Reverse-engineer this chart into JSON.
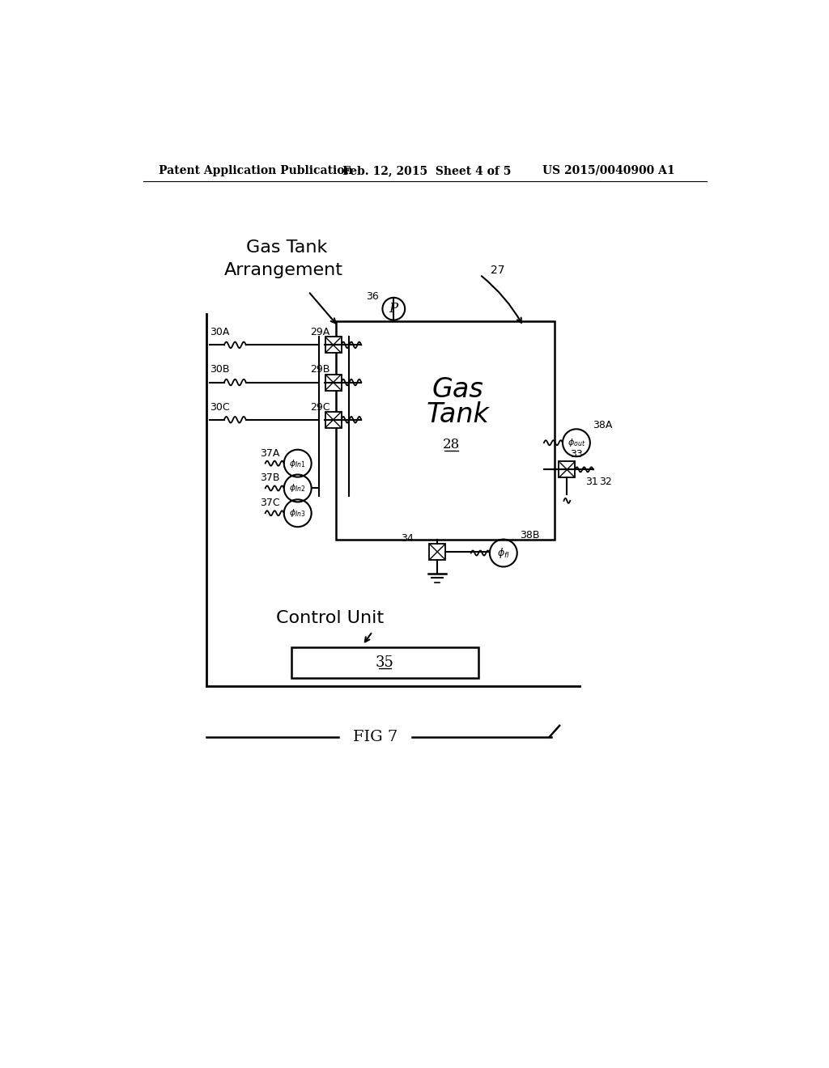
{
  "bg_color": "#ffffff",
  "header_left": "Patent Application Publication",
  "header_mid": "Feb. 12, 2015  Sheet 4 of 5",
  "header_right": "US 2015/0040900 A1",
  "fig_label": "FIG 7",
  "label_27": "27",
  "label_28": "28",
  "label_29A": "29A",
  "label_29B": "29B",
  "label_29C": "29C",
  "label_30A": "30A",
  "label_30B": "30B",
  "label_30C": "30C",
  "label_31": "31",
  "label_32": "32",
  "label_33": "33",
  "label_34": "34",
  "label_35": "35",
  "label_36": "36",
  "label_37A": "37A",
  "label_37B": "37B",
  "label_37C": "37C",
  "label_38A": "38A",
  "label_38B": "38B"
}
